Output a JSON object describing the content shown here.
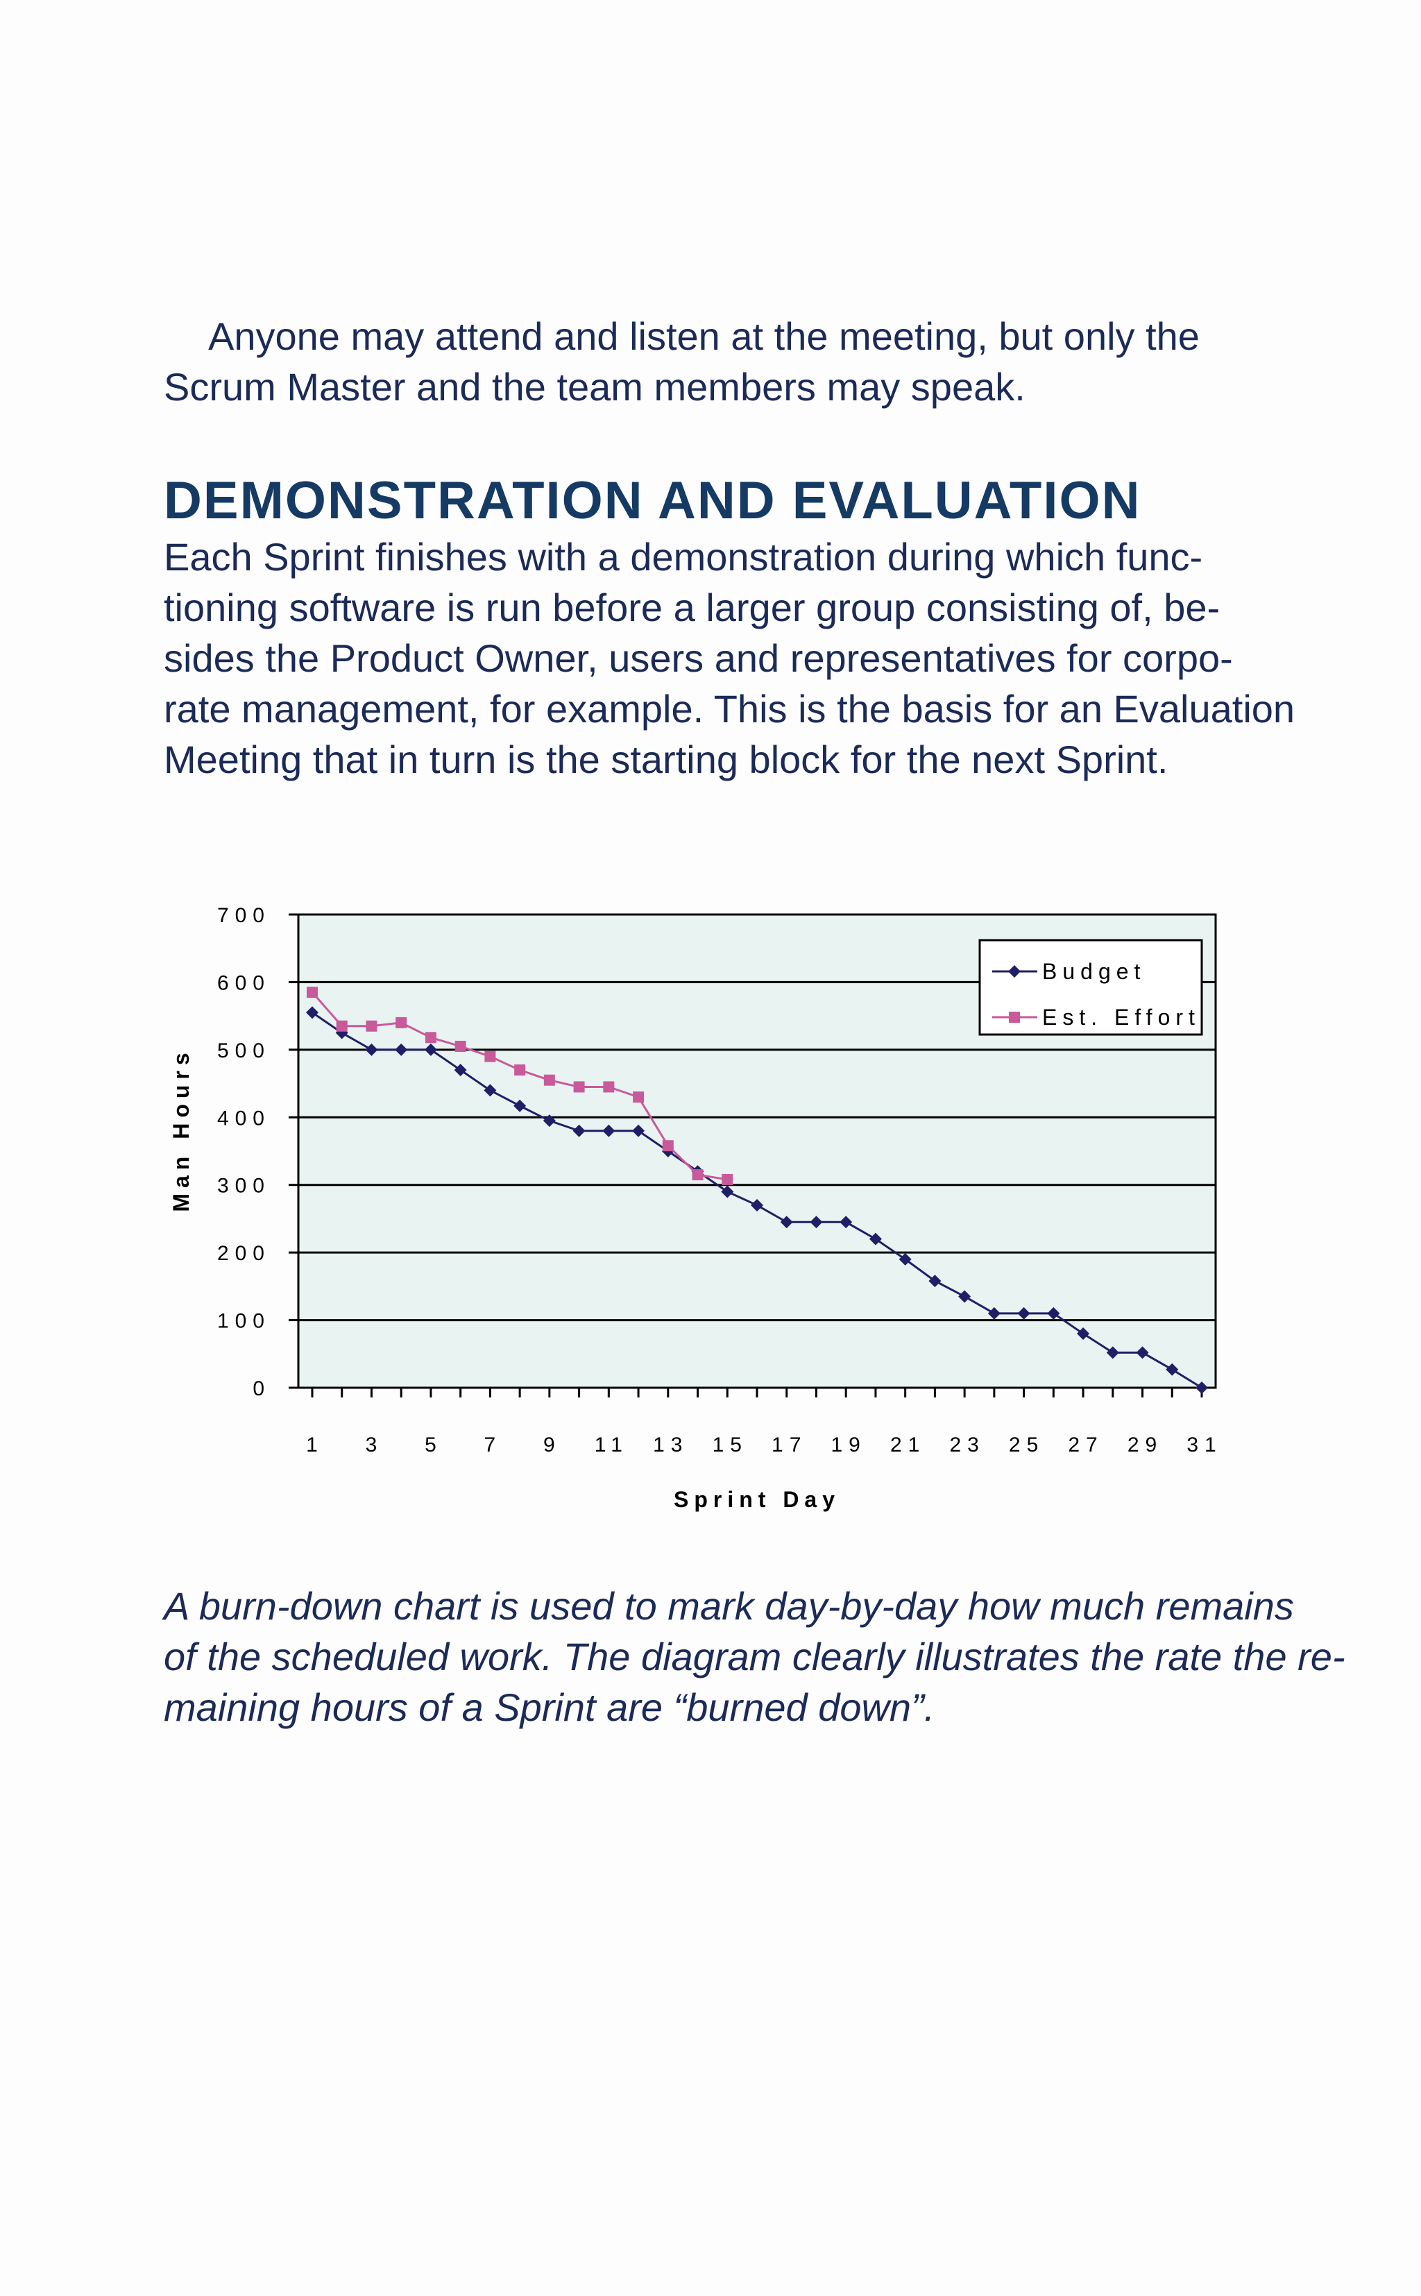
{
  "intro": {
    "lines": [
      "Anyone may attend and listen at the meeting, but only the",
      "Scrum Master and the team members may speak."
    ]
  },
  "section": {
    "heading": "DEMONSTRATION AND EVALUATION",
    "lines": [
      "Each Sprint finishes with a demonstration during which func-",
      "tioning software is run before a larger group consisting of, be-",
      "sides the Product Owner, users and representatives for corpo-",
      "rate management, for example. This is the basis for an Evaluation",
      "Meeting that in turn is the starting block for the next Sprint."
    ]
  },
  "caption": {
    "lines": [
      "A burn-down chart is used to mark day-by-day how much remains",
      "of the scheduled work. The diagram clearly illustrates the rate the re-",
      "maining hours of a Sprint are “burned down”."
    ]
  },
  "chart_data": {
    "type": "line",
    "xlabel": "Sprint Day",
    "ylabel": "Man Hours",
    "ylim": [
      0,
      700
    ],
    "yticks": [
      0,
      100,
      200,
      300,
      400,
      500,
      600,
      700
    ],
    "xlim": [
      1,
      31
    ],
    "xtick_labels": [
      1,
      3,
      5,
      7,
      9,
      11,
      13,
      15,
      17,
      19,
      21,
      23,
      25,
      27,
      29,
      31
    ],
    "grid": "horizontal",
    "legend_position": "top-right",
    "colors": {
      "plot_bg": "#e9f3f2",
      "budget": "#1f1f66",
      "effort": "#c85a9a"
    },
    "series": [
      {
        "name": "Budget",
        "marker": "diamond",
        "x": [
          1,
          2,
          3,
          4,
          5,
          6,
          7,
          8,
          9,
          10,
          11,
          12,
          13,
          14,
          15,
          16,
          17,
          18,
          19,
          20,
          21,
          22,
          23,
          24,
          25,
          26,
          27,
          28,
          29,
          30,
          31
        ],
        "values": [
          555,
          525,
          500,
          500,
          500,
          470,
          440,
          417,
          395,
          380,
          380,
          380,
          350,
          320,
          290,
          270,
          245,
          245,
          245,
          220,
          190,
          158,
          135,
          110,
          110,
          110,
          80,
          52,
          52,
          27,
          0
        ]
      },
      {
        "name": "Est. Effort",
        "marker": "square",
        "x": [
          1,
          2,
          3,
          4,
          5,
          6,
          7,
          8,
          9,
          10,
          11,
          12,
          13,
          14,
          15
        ],
        "values": [
          585,
          535,
          535,
          540,
          518,
          505,
          490,
          470,
          455,
          445,
          445,
          430,
          358,
          315,
          308
        ]
      }
    ]
  }
}
